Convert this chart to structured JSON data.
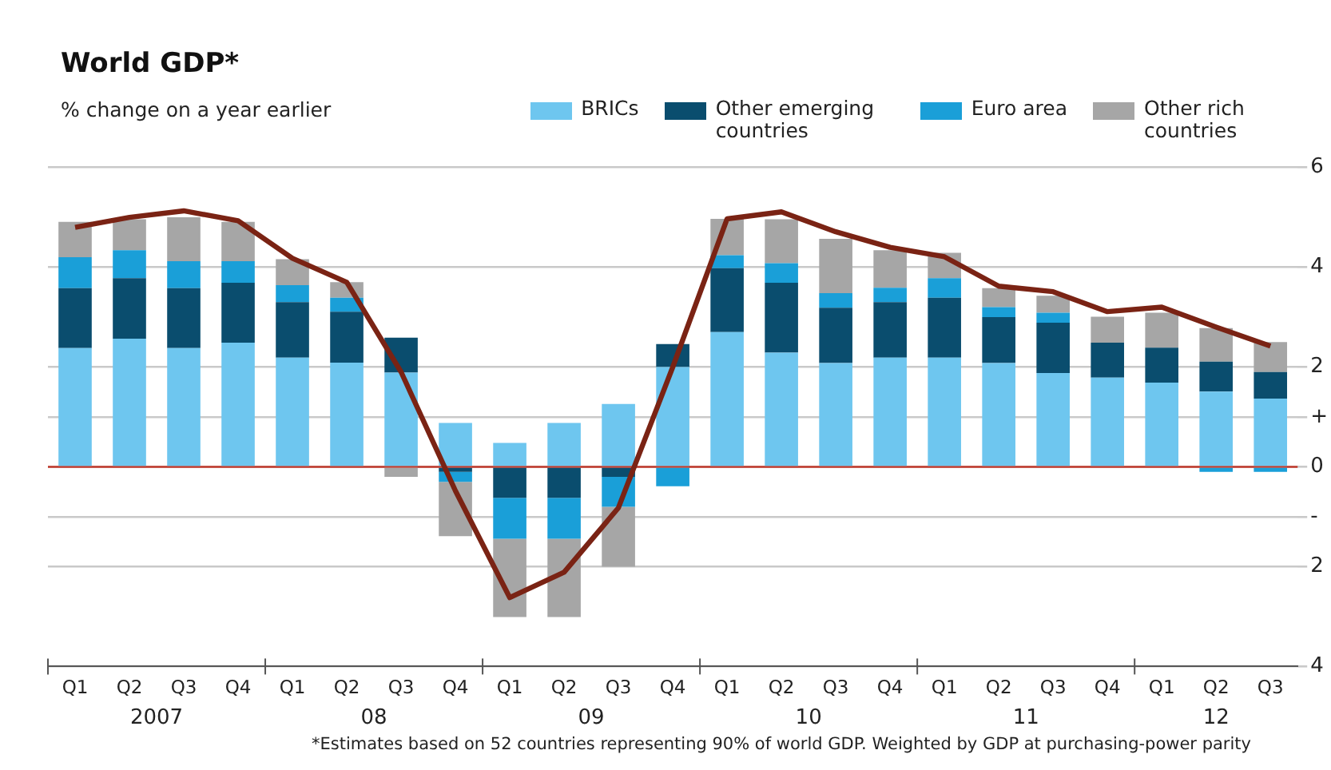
{
  "chart_data": {
    "type": "bar",
    "stacked": true,
    "title": "World GDP*",
    "subtitle": "% change on a year earlier",
    "categories": [
      "Q1",
      "Q2",
      "Q3",
      "Q4",
      "Q1",
      "Q2",
      "Q3",
      "Q4",
      "Q1",
      "Q2",
      "Q3",
      "Q4",
      "Q1",
      "Q2",
      "Q3",
      "Q4",
      "Q1",
      "Q2",
      "Q3",
      "Q4",
      "Q1",
      "Q2",
      "Q3"
    ],
    "series": [
      {
        "name": "BRICs",
        "color": "#6ec6ef",
        "values": [
          2.38,
          2.57,
          2.38,
          2.49,
          2.19,
          2.09,
          1.89,
          0.88,
          0.48,
          0.88,
          1.26,
          2.0,
          2.7,
          2.29,
          2.08,
          2.19,
          2.19,
          2.08,
          1.88,
          1.79,
          1.69,
          1.51,
          1.37
        ]
      },
      {
        "name": "Other emerging countries",
        "color": "#0a4d6e",
        "values": [
          1.2,
          1.21,
          1.2,
          1.2,
          1.11,
          1.02,
          0.7,
          -0.1,
          -0.62,
          -0.62,
          -0.2,
          0.46,
          1.28,
          1.4,
          1.11,
          1.11,
          1.2,
          0.92,
          1.01,
          0.7,
          0.7,
          0.6,
          0.53
        ]
      },
      {
        "name": "Euro area",
        "color": "#1a9fd8",
        "values": [
          0.62,
          0.56,
          0.54,
          0.43,
          0.34,
          0.28,
          0,
          -0.2,
          -0.82,
          -0.82,
          -0.6,
          -0.39,
          0.26,
          0.39,
          0.29,
          0.29,
          0.39,
          0.2,
          0.2,
          0,
          0,
          -0.1,
          -0.1
        ]
      },
      {
        "name": "Other rich countries",
        "color": "#a6a6a6",
        "values": [
          0.71,
          0.62,
          0.88,
          0.79,
          0.52,
          0.31,
          -0.2,
          -1.09,
          -1.57,
          -1.57,
          -1.2,
          0,
          0.73,
          0.88,
          1.09,
          0.75,
          0.51,
          0.38,
          0.34,
          0.52,
          0.7,
          0.67,
          0.6
        ]
      },
      {
        "type": "line",
        "color": "#7a2314",
        "values": [
          4.8,
          5.0,
          5.13,
          4.93,
          4.18,
          3.7,
          1.9,
          -0.48,
          -2.62,
          -2.11,
          -0.82,
          2.0,
          4.97,
          5.11,
          4.71,
          4.4,
          4.21,
          3.62,
          3.51,
          3.11,
          3.2,
          2.8,
          2.42
        ]
      }
    ],
    "ylim": [
      -4,
      6
    ],
    "yticks": [
      {
        "value": -4,
        "label": "4"
      },
      {
        "value": -2,
        "label": "2"
      },
      {
        "value": -1,
        "label": "-"
      },
      0,
      {
        "value": 1,
        "label": "+"
      },
      2,
      4,
      6
    ],
    "ref_lines": [
      {
        "axis": "y",
        "value": 0,
        "color": "#c0392b"
      }
    ],
    "grid": "y",
    "legend": "top right",
    "marker": "none",
    "annotations": [
      "2007",
      "08",
      "09",
      "10",
      "11",
      "12",
      "*Estimates based on 52 countries representing 90% of world GDP. Weighted by GDP at purchasing-power parity"
    ]
  }
}
